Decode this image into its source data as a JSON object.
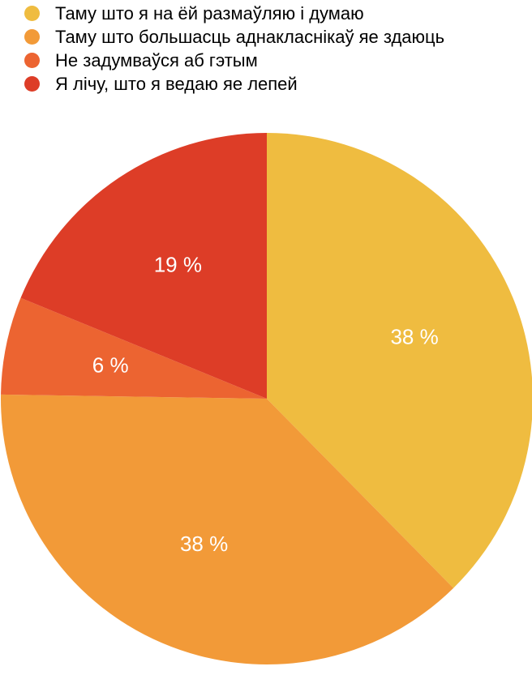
{
  "chart_data": {
    "type": "pie",
    "title": "",
    "start_angle_deg": 0,
    "direction": "clockwise",
    "legend_position": "top-left",
    "slices": [
      {
        "name": "Таму што я на ёй размаўляю і думаю",
        "value": 38,
        "label": "38 %",
        "color": "#EFBC40"
      },
      {
        "name": "Таму што большасць аднакласнікаў яе здаюць",
        "value": 38,
        "label": "38 %",
        "color": "#F29A38"
      },
      {
        "name": "Не задумваўся аб гэтым",
        "value": 6,
        "label": "6 %",
        "color": "#EC6431"
      },
      {
        "name": "Я лічу, што я ведаю яе лепей",
        "value": 19,
        "label": "19 %",
        "color": "#DD3D27"
      }
    ]
  }
}
